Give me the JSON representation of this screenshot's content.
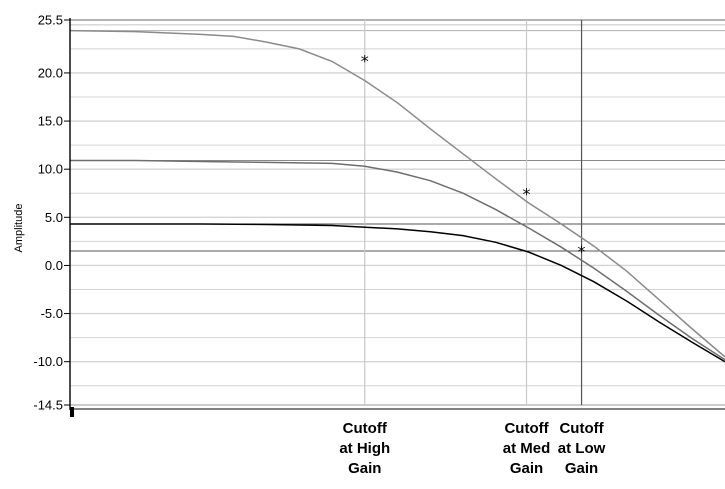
{
  "chart_data": {
    "type": "line",
    "title": "",
    "xlabel": "",
    "ylabel": "Amplitude",
    "ylim": [
      -14.5,
      25.5
    ],
    "xlim": [
      0,
      100
    ],
    "grid": true,
    "y_ticks": [
      {
        "value": 25.5,
        "label": "25.5"
      },
      {
        "value": 20.0,
        "label": "20.0"
      },
      {
        "value": 15.0,
        "label": "15.0"
      },
      {
        "value": 10.0,
        "label": "10.0"
      },
      {
        "value": 5.0,
        "label": "5.0"
      },
      {
        "value": 0.0,
        "label": "0.0"
      },
      {
        "value": -5.0,
        "label": "-5.0"
      },
      {
        "value": -10.0,
        "label": "-10.0"
      },
      {
        "value": -14.5,
        "label": "-14.5"
      }
    ],
    "reference_lines_y": [
      24.4,
      10.9,
      4.3,
      1.5
    ],
    "series": [
      {
        "color": "#8a8a8a",
        "x": [
          0,
          10,
          20,
          25,
          30,
          35,
          40,
          45,
          50,
          55,
          60,
          65,
          70,
          75,
          80,
          85,
          90,
          95,
          100
        ],
        "y": [
          24.4,
          24.3,
          24.0,
          23.8,
          23.2,
          22.5,
          21.2,
          19.2,
          16.9,
          14.2,
          11.6,
          9.0,
          6.5,
          4.3,
          2.0,
          -0.6,
          -3.6,
          -6.6,
          -9.5
        ]
      },
      {
        "color": "#6e6e6e",
        "x": [
          0,
          10,
          20,
          30,
          40,
          45,
          50,
          55,
          60,
          65,
          70,
          75,
          80,
          85,
          90,
          95,
          100
        ],
        "y": [
          10.9,
          10.9,
          10.8,
          10.7,
          10.6,
          10.3,
          9.7,
          8.8,
          7.5,
          5.8,
          3.9,
          1.9,
          -0.3,
          -2.7,
          -5.2,
          -7.6,
          -9.8
        ]
      },
      {
        "color": "#000000",
        "x": [
          0,
          10,
          20,
          30,
          40,
          50,
          55,
          60,
          65,
          70,
          75,
          80,
          85,
          90,
          95,
          100
        ],
        "y": [
          4.3,
          4.3,
          4.3,
          4.25,
          4.15,
          3.8,
          3.5,
          3.1,
          2.4,
          1.4,
          0.0,
          -1.7,
          -3.7,
          -5.9,
          -8.0,
          -10.0
        ]
      }
    ],
    "markers": [
      {
        "x": 45.0,
        "y": 21.3,
        "symbol": "*"
      },
      {
        "x": 69.7,
        "y": 7.5,
        "symbol": "*"
      },
      {
        "x": 78.1,
        "y": 1.5,
        "symbol": "*"
      }
    ],
    "vertical_markers": [
      {
        "x": 45.0,
        "color": "#c8c8c8",
        "label": [
          "Cutoff",
          "at High",
          "Gain"
        ]
      },
      {
        "x": 69.7,
        "color": "#c8c8c8",
        "label": [
          "Cutoff",
          "at Med",
          "Gain"
        ]
      },
      {
        "x": 78.1,
        "color": "#555555",
        "label": [
          "Cutoff",
          "at Low",
          "Gain"
        ]
      }
    ],
    "background": "#ffffff",
    "gridline_color": "#d4d4d4"
  }
}
